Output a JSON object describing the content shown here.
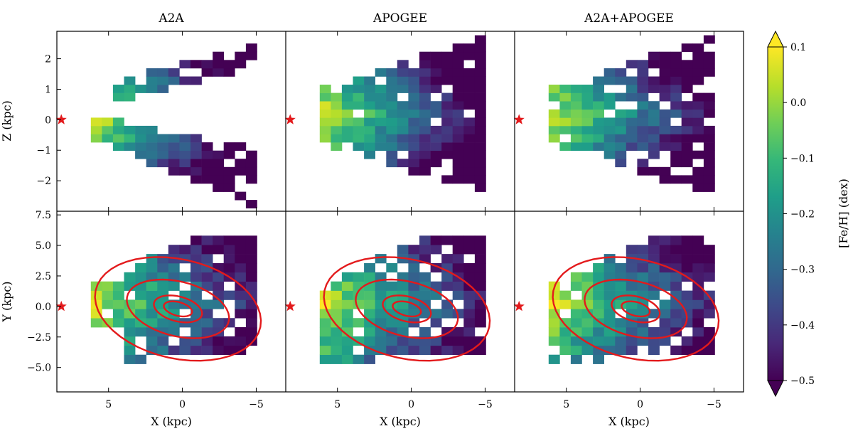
{
  "chart_data": [
    {
      "type": "heatmap",
      "panel": "top-left",
      "title": "A2A",
      "xlabel": "",
      "ylabel": "Z (kpc)",
      "xlim": [
        8.5,
        -7
      ],
      "ylim": [
        -3,
        2.9
      ],
      "x_ticks": [
        "5",
        "0",
        "−5"
      ],
      "y_ticks": [
        "2",
        "1",
        "0",
        "−1",
        "−2"
      ],
      "sun_marker": {
        "x": 8.2,
        "y": 0
      }
    },
    {
      "type": "heatmap",
      "panel": "top-middle",
      "title": "APOGEE",
      "xlabel": "",
      "ylabel": "",
      "xlim": [
        8.5,
        -7
      ],
      "ylim": [
        -3,
        2.9
      ],
      "sun_marker": {
        "x": 8.2,
        "y": 0
      }
    },
    {
      "type": "heatmap",
      "panel": "top-right",
      "title": "A2A+APOGEE",
      "xlabel": "",
      "ylabel": "",
      "xlim": [
        8.5,
        -7
      ],
      "ylim": [
        -3,
        2.9
      ],
      "sun_marker": {
        "x": 8.2,
        "y": 0
      }
    },
    {
      "type": "heatmap",
      "panel": "bottom-left",
      "xlabel": "X (kpc)",
      "ylabel": "Y (kpc)",
      "xlim": [
        8.5,
        -7
      ],
      "ylim": [
        -7,
        7.8
      ],
      "x_ticks": [
        "5",
        "0",
        "−5"
      ],
      "y_ticks": [
        "7.5",
        "5.0",
        "2.5",
        "0.0",
        "−2.5",
        "−5.0"
      ],
      "sun_marker": {
        "x": 8.2,
        "y": 0
      },
      "contours": "red density contours"
    },
    {
      "type": "heatmap",
      "panel": "bottom-middle",
      "xlabel": "X (kpc)",
      "ylabel": "",
      "xlim": [
        8.5,
        -7
      ],
      "ylim": [
        -7,
        7.8
      ],
      "x_ticks": [
        "5",
        "0",
        "−5"
      ],
      "sun_marker": {
        "x": 8.2,
        "y": 0
      },
      "contours": "red density contours"
    },
    {
      "type": "heatmap",
      "panel": "bottom-right",
      "xlabel": "X (kpc)",
      "ylabel": "",
      "xlim": [
        8.5,
        -7
      ],
      "ylim": [
        -7,
        7.8
      ],
      "x_ticks": [
        "5",
        "0",
        "−5"
      ],
      "sun_marker": {
        "x": 8.2,
        "y": 0
      },
      "contours": "red density contours"
    }
  ],
  "colorbar": {
    "label": "[Fe/H] (dex)",
    "range": [
      -0.5,
      0.1
    ],
    "ticks": [
      "0.1",
      "0.0",
      "−0.1",
      "−0.2",
      "−0.3",
      "−0.4",
      "−0.5"
    ],
    "colormap": "viridis",
    "colors": [
      "#440154",
      "#482878",
      "#3e4989",
      "#31688e",
      "#26828e",
      "#1f9e89",
      "#35b779",
      "#6ece58",
      "#b5de2b",
      "#fde725"
    ]
  },
  "contour_color": "#e31a1c",
  "marker_color": "#e31a1c"
}
